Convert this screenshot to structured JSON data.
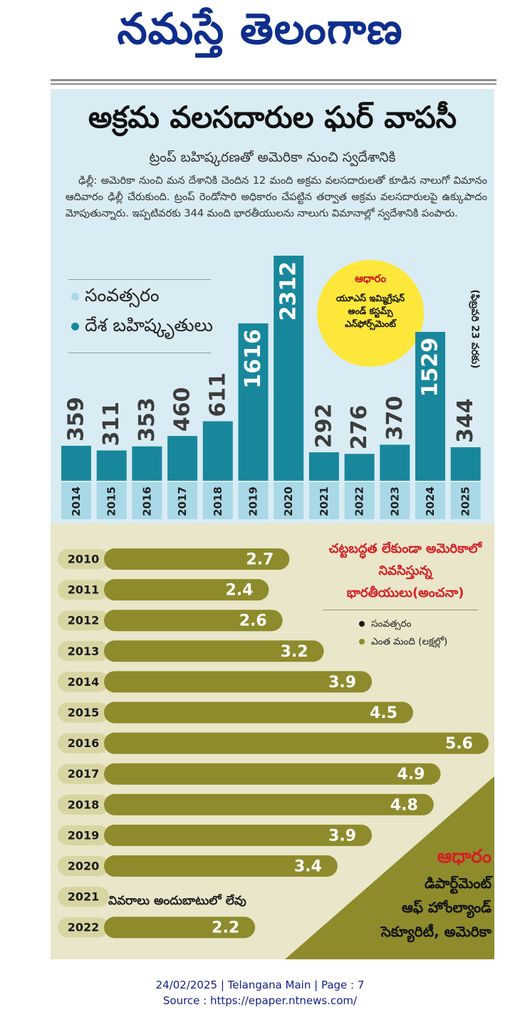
{
  "masthead": "నమస్తే తెలంగాణ",
  "headline": "అక్రమ వలసదారుల ఘర్ వాపసీ",
  "subhead": "ట్రంప్ బహిష్కరణతో అమెరికా నుంచి స్వదేశానికి",
  "story": "ఢిల్లీ: అమెరికా నుంచి మన దేశానికి చెందిన 12 మంది అక్రమ వలసదారులతో కూడిన నాలుగో విమానం ఆదివారం ఢిల్లీ చేరుకుంది. ట్రంప్ రెండోసారి అధికారం చేపట్టిన తర్వాత అక్రమ వలసదారులపై ఉక్కుపాదం మోపుతున్నారు. ఇప్పటివరకు 344 మంది భారతీయులను నాలుగు విమానాల్లో స్వదేశానికి పంపారు.",
  "source_badge": {
    "title": "ఆధారం",
    "body": "యూఎస్ ఇమ్మిగ్రేషన్ అండ్ కస్టమ్స్ ఎన్‌ఫోర్స్‌మెంట్"
  },
  "legend_top": {
    "year": "సంవత్సరం",
    "deported": "దేశ బహిష్కృతులు",
    "year_color": "#a9d8e6",
    "deported_color": "#18879c"
  },
  "note_2025": "(ఫిబ్రవరి 23 వరకు)",
  "legend_bottom": {
    "title": "చట్టబద్ధత లేకుండా అమెరికాలో నివసిస్తున్న భారతీయులు(అంచనా)",
    "year": "సంవత్సరం",
    "count": "ఎంత మంది (లక్షల్లో)",
    "year_color": "#1a1a1a",
    "count_color": "#8e8b2c"
  },
  "source2": {
    "title": "ఆధారం",
    "lines": [
      "డిపార్ట్‌మెంట్",
      "ఆఫ్ హోంల్యాండ్",
      "సెక్యూరిటీ, అమెరికా"
    ]
  },
  "no_data_2021": "వివరాలు అందుబాటులో లేవు",
  "footer": {
    "line1": "24/02/2025 | Telangana Main | Page : 7",
    "line2": "Source : https://epaper.ntnews.com/"
  },
  "colors": {
    "bar_blue": "#18879c",
    "bar_olive": "#8e8b2c",
    "year_label_olive": "#d8d5a2",
    "year_label_blue": "#a9d8e6"
  },
  "chart_data": [
    {
      "type": "bar",
      "orientation": "vertical",
      "categories": [
        "2014",
        "2015",
        "2016",
        "2017",
        "2018",
        "2019",
        "2020",
        "2021",
        "2022",
        "2023",
        "2024",
        "2025"
      ],
      "values": [
        359,
        311,
        353,
        460,
        611,
        1616,
        2312,
        292,
        276,
        370,
        1529,
        344
      ],
      "title": "",
      "ylim": [
        0,
        2312
      ],
      "value_labels": "rotated, on top of bars",
      "legend": "top-left"
    },
    {
      "type": "bar",
      "orientation": "horizontal",
      "categories": [
        "2010",
        "2011",
        "2012",
        "2013",
        "2014",
        "2015",
        "2016",
        "2017",
        "2018",
        "2019",
        "2020",
        "2021",
        "2022"
      ],
      "values": [
        2.7,
        2.4,
        2.6,
        3.2,
        3.9,
        4.5,
        5.6,
        4.9,
        4.8,
        3.9,
        3.4,
        null,
        2.2
      ],
      "value_text": [
        "2.7",
        "2.4",
        "2.6",
        "3.2",
        "3.9",
        "4.5",
        "5.6",
        "4.9",
        "4.8",
        "3.9",
        "3.4",
        "",
        "2.2"
      ],
      "title": "",
      "xlim": [
        0,
        5.6
      ],
      "legend": "top-right"
    }
  ]
}
